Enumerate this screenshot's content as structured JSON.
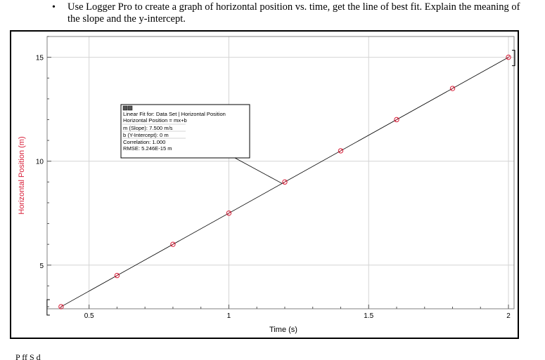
{
  "instruction": {
    "bullet": "•",
    "text": "Use Logger Pro to create a graph of horizontal position vs. time, get the line of best fit. Explain the meaning of the slope and the y-intercept."
  },
  "chart_data": {
    "type": "scatter",
    "title": "",
    "xlabel": "Time (s)",
    "ylabel": "Horizontal Position (m)",
    "xlim": [
      0.35,
      2.02
    ],
    "ylim": [
      2.9,
      16.0
    ],
    "x_ticks": [
      0.5,
      1,
      1.5,
      2
    ],
    "x_tick_labels": [
      "0.5",
      "1",
      "1.5",
      "2"
    ],
    "y_ticks": [
      5,
      10,
      15
    ],
    "y_tick_labels": [
      "5",
      "10",
      "15"
    ],
    "grid": true,
    "point_color": "#d8203a",
    "line_color": "#000000",
    "label_color": "#d8203a",
    "series": [
      {
        "x": [
          0.4,
          0.6,
          0.8,
          1.0,
          1.2,
          1.4,
          1.6,
          1.8,
          2.0
        ],
        "y": [
          3.0,
          4.5,
          6.0,
          7.5,
          9.0,
          10.5,
          12.0,
          13.5,
          15.0
        ]
      }
    ],
    "fit": {
      "slope": 7.5,
      "intercept": 0,
      "lines": [
        "Linear Fit for: Data Set | Horizontal Position",
        "Horizontal Position = mx+b",
        "m (Slope): 7.500 m/s",
        "b (Y-Intercept): 0 m",
        "Correlation: 1.000",
        "RMSE: 5.246E-15 m"
      ]
    }
  },
  "footer": {
    "text": "P  ff  S  d"
  }
}
